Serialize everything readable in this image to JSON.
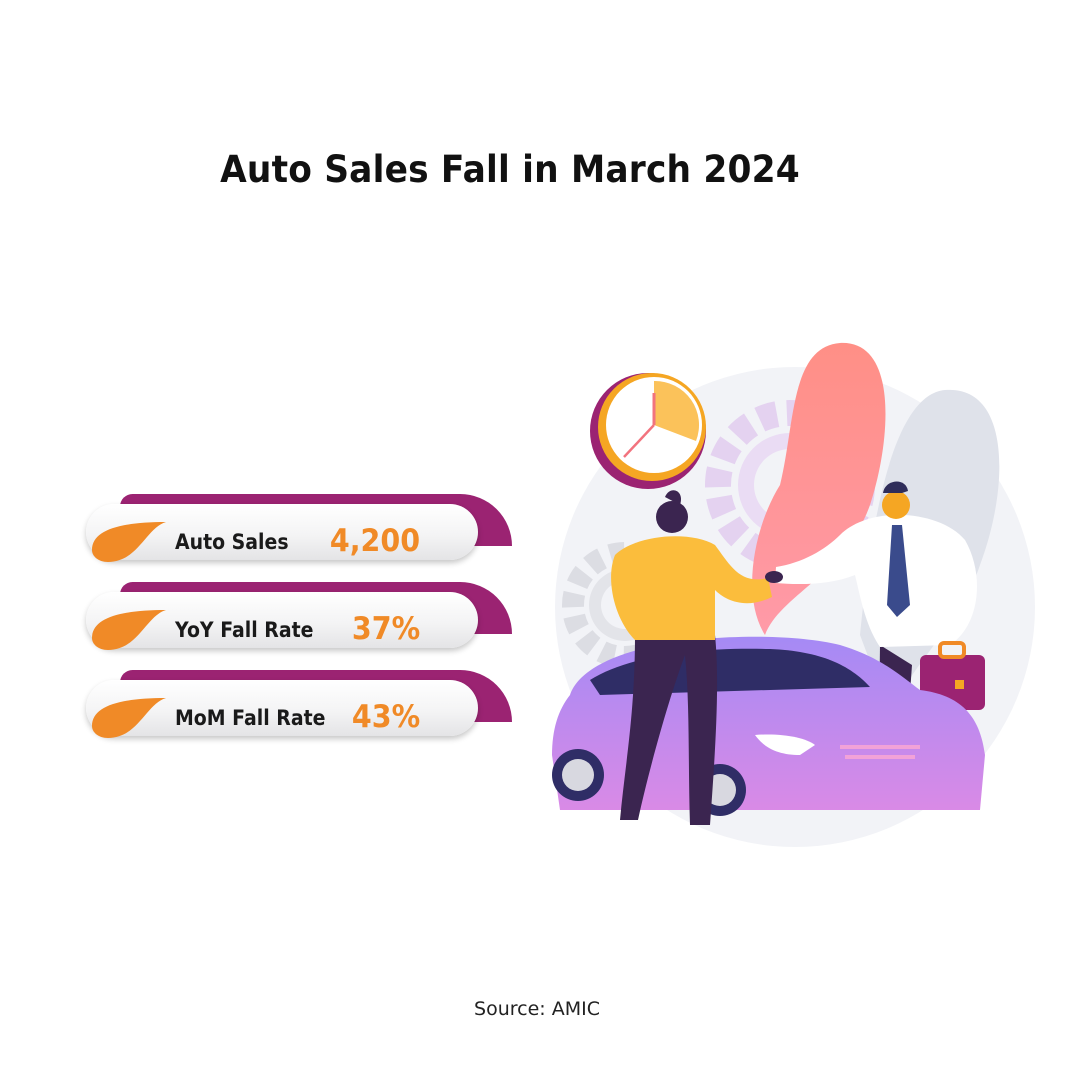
{
  "title": "Auto Sales Fall in March 2024",
  "stats": [
    {
      "label": "Auto Sales",
      "value": "4,200"
    },
    {
      "label": "YoY Fall Rate",
      "value": "37%"
    },
    {
      "label": "MoM Fall Rate",
      "value": "43%"
    }
  ],
  "source": "Source: AMIC",
  "colors": {
    "accent_orange": "#f08a27",
    "accent_purple": "#9b2372",
    "car_purple": "#a77ff0"
  },
  "illustration": {
    "icons": [
      "clock-icon",
      "gear-icon",
      "car-icon",
      "briefcase-icon",
      "handshake-icon"
    ]
  }
}
